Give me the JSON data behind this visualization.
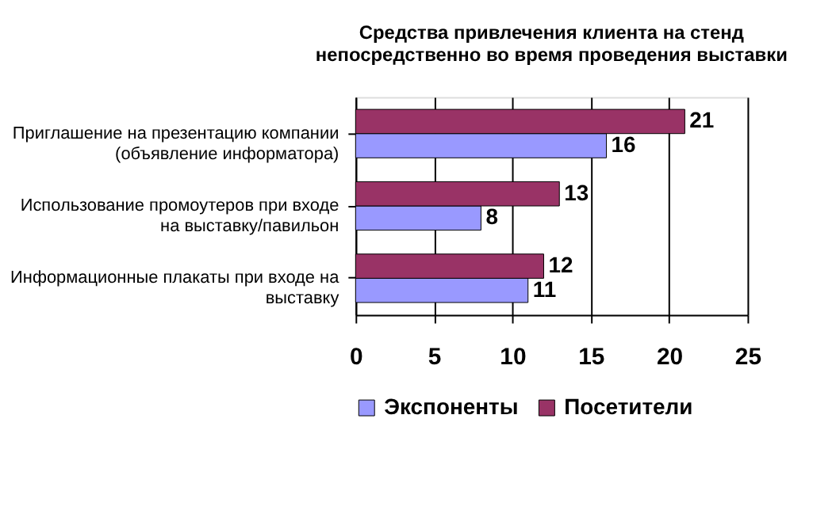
{
  "chart_data": {
    "type": "bar",
    "orientation": "horizontal",
    "title": [
      "Средства привлечения клиента на стенд",
      "непосредственно во время проведения выставки"
    ],
    "categories": [
      "Приглашение на презентацию компании (объявление информатора)",
      "Использование промоутеров при входе на выставку/павильон",
      "Информационные плакаты при входе на выставку"
    ],
    "series": [
      {
        "name": "Экспоненты",
        "color": "#9999ff",
        "values": [
          16,
          8,
          11
        ]
      },
      {
        "name": "Посетители",
        "color": "#993366",
        "values": [
          21,
          13,
          12
        ]
      }
    ],
    "xlim": [
      0,
      25
    ],
    "xticks": [
      0,
      5,
      10,
      15,
      20,
      25
    ],
    "grid": "x",
    "legend": "bottom",
    "data_labels": true
  }
}
